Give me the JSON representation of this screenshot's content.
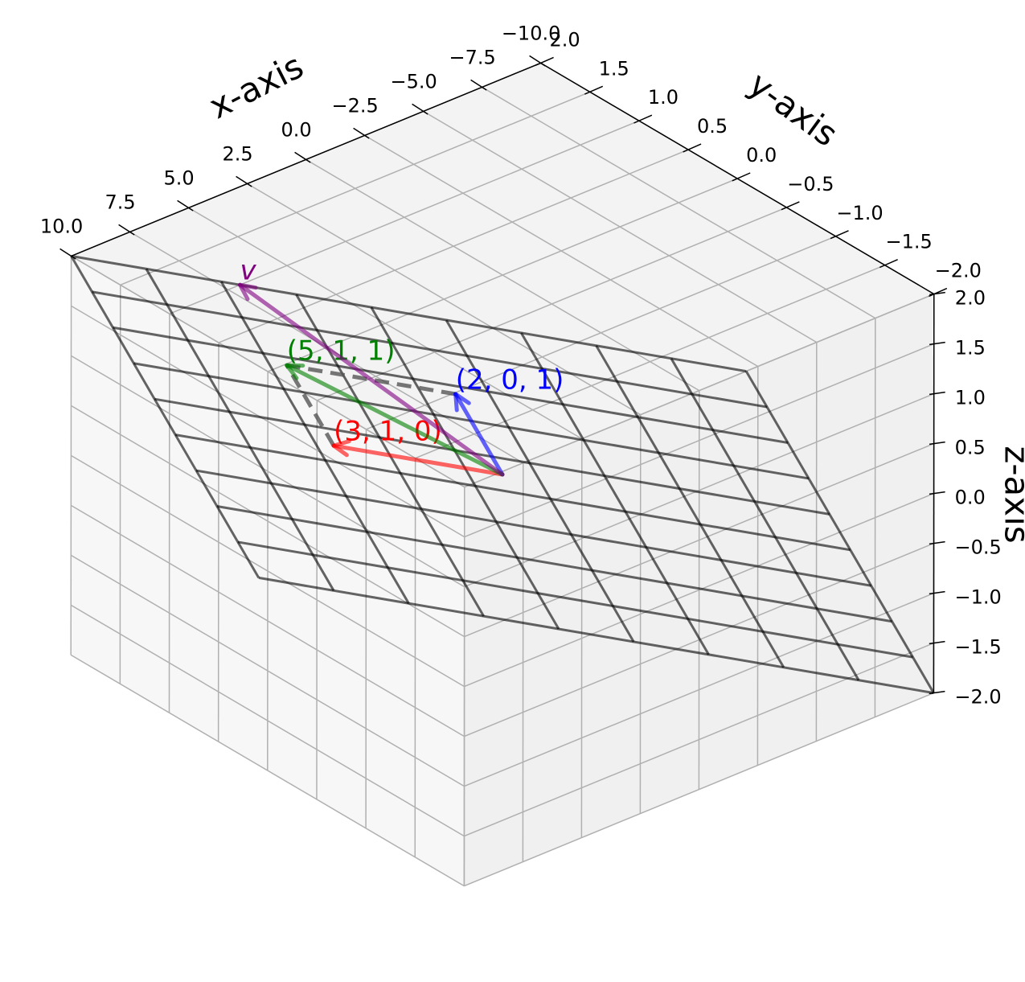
{
  "chart_data": {
    "type": "vector3d",
    "xlabel": "x-axis",
    "ylabel": "y-axis",
    "zlabel": "z-axis",
    "xlim": [
      -10,
      10
    ],
    "ylim": [
      -2,
      2
    ],
    "zlim": [
      -2,
      2
    ],
    "xticks": [
      {
        "value": -10,
        "label": "−10.0"
      },
      {
        "value": -7.5,
        "label": "−7.5"
      },
      {
        "value": -5,
        "label": "−5.0"
      },
      {
        "value": -2.5,
        "label": "−2.5"
      },
      {
        "value": 0,
        "label": "0.0"
      },
      {
        "value": 2.5,
        "label": "2.5"
      },
      {
        "value": 5,
        "label": "5.0"
      },
      {
        "value": 7.5,
        "label": "7.5"
      },
      {
        "value": 10,
        "label": "10.0"
      }
    ],
    "yticks": [
      {
        "value": -2,
        "label": "−2.0"
      },
      {
        "value": -1.5,
        "label": "−1.5"
      },
      {
        "value": -1,
        "label": "−1.0"
      },
      {
        "value": -0.5,
        "label": "−0.5"
      },
      {
        "value": 0,
        "label": "0.0"
      },
      {
        "value": 0.5,
        "label": "0.5"
      },
      {
        "value": 1,
        "label": "1.0"
      },
      {
        "value": 1.5,
        "label": "1.5"
      },
      {
        "value": 2,
        "label": "2.0"
      }
    ],
    "zticks": [
      {
        "value": -2,
        "label": "−2.0"
      },
      {
        "value": -1.5,
        "label": "−1.5"
      },
      {
        "value": -1,
        "label": "−1.0"
      },
      {
        "value": -0.5,
        "label": "−0.5"
      },
      {
        "value": 0,
        "label": "0.0"
      },
      {
        "value": 0.5,
        "label": "0.5"
      },
      {
        "value": 1,
        "label": "1.0"
      },
      {
        "value": 1.5,
        "label": "1.5"
      },
      {
        "value": 2,
        "label": "2.0"
      }
    ],
    "series": [
      {
        "name": "(3, 1, 0)",
        "color": "red",
        "values": [
          3,
          1,
          0
        ]
      },
      {
        "name": "(2, 0, 1)",
        "color": "blue",
        "values": [
          2,
          0,
          1
        ]
      },
      {
        "name": "(5, 1, 1)",
        "color": "green",
        "values": [
          5,
          1,
          1
        ]
      },
      {
        "name": "v",
        "color": "purple",
        "values": [
          7,
          1,
          2
        ]
      }
    ],
    "parallelogram": true,
    "plane_grid_lines": 10,
    "grid": true
  }
}
